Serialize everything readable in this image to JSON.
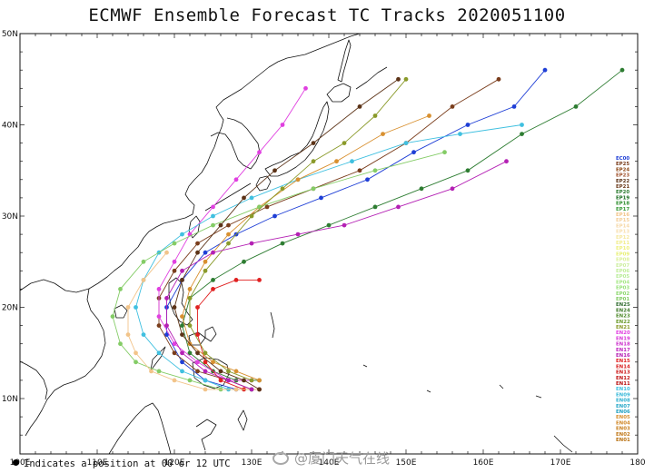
{
  "title": "ECMWF Ensemble Forecast TC Tracks 2020051100",
  "footnote": "Indicates a position at 00 or 12 UTC",
  "watermark": "@厦门天气在线",
  "x_axis_labels": [
    "100E",
    "110E",
    "120E",
    "130E",
    "140E",
    "150E",
    "160E",
    "170E",
    "180"
  ],
  "y_axis_labels": [
    "10N",
    "20N",
    "30N",
    "40N",
    "50N"
  ],
  "legend": {
    "members": [
      "EC00",
      "EP25",
      "EP24",
      "EP23",
      "EP22",
      "EP21",
      "EP20",
      "EP19",
      "EP18",
      "EP17",
      "EP16",
      "EP15",
      "EP14",
      "EP13",
      "EP12",
      "EP11",
      "EP10",
      "EP09",
      "EP08",
      "EP07",
      "EP06",
      "EP05",
      "EP04",
      "EP03",
      "EP02",
      "EP01",
      "EN25",
      "EN24",
      "EN23",
      "EN22",
      "EN21",
      "EN20",
      "EN19",
      "EN18",
      "EN17",
      "EN16",
      "EN15",
      "EN14",
      "EN13",
      "EN12",
      "EN11",
      "EN10",
      "EN09",
      "EN08",
      "EN07",
      "EN06",
      "EN05",
      "EN04",
      "EN03",
      "EN02",
      "EN01"
    ],
    "colors": [
      "#1f3fd6",
      "#7a3d1c",
      "#8b4513",
      "#a0522d",
      "#5c3317",
      "#6b3a1a",
      "#2e7d32",
      "#1b6e20",
      "#2f8f2f",
      "#3a9b3a",
      "#f2c48a",
      "#f4cf9a",
      "#f6d8a8",
      "#f8e0b0",
      "#f6e8a0",
      "#f2ee90",
      "#eef080",
      "#e8f078",
      "#dcf09a",
      "#cdeea0",
      "#c2ee9a",
      "#b8ec98",
      "#a8e888",
      "#98e27a",
      "#8ed870",
      "#84cc66",
      "#2f6b2f",
      "#3f7a2a",
      "#4e8a2a",
      "#6a9a2a",
      "#8a9a2a",
      "#e040e0",
      "#d838d8",
      "#cc30cc",
      "#c028c0",
      "#b420b4",
      "#e02020",
      "#d81c1c",
      "#cc1818",
      "#c01414",
      "#b81010",
      "#40c0e0",
      "#38b8d8",
      "#30b0d0",
      "#28a8c8",
      "#20a0c0",
      "#d89030",
      "#d08828",
      "#c88020",
      "#c07818",
      "#b87010"
    ]
  },
  "colors": {
    "coast": "#111111",
    "track_palette": [
      "#1f3fd6",
      "#7a3d1c",
      "#2e7d32",
      "#e040e0",
      "#e02020",
      "#40c0e0",
      "#d89030",
      "#84cc66",
      "#f2c48a",
      "#8a9a2a",
      "#5c3317",
      "#b420b4"
    ]
  }
}
